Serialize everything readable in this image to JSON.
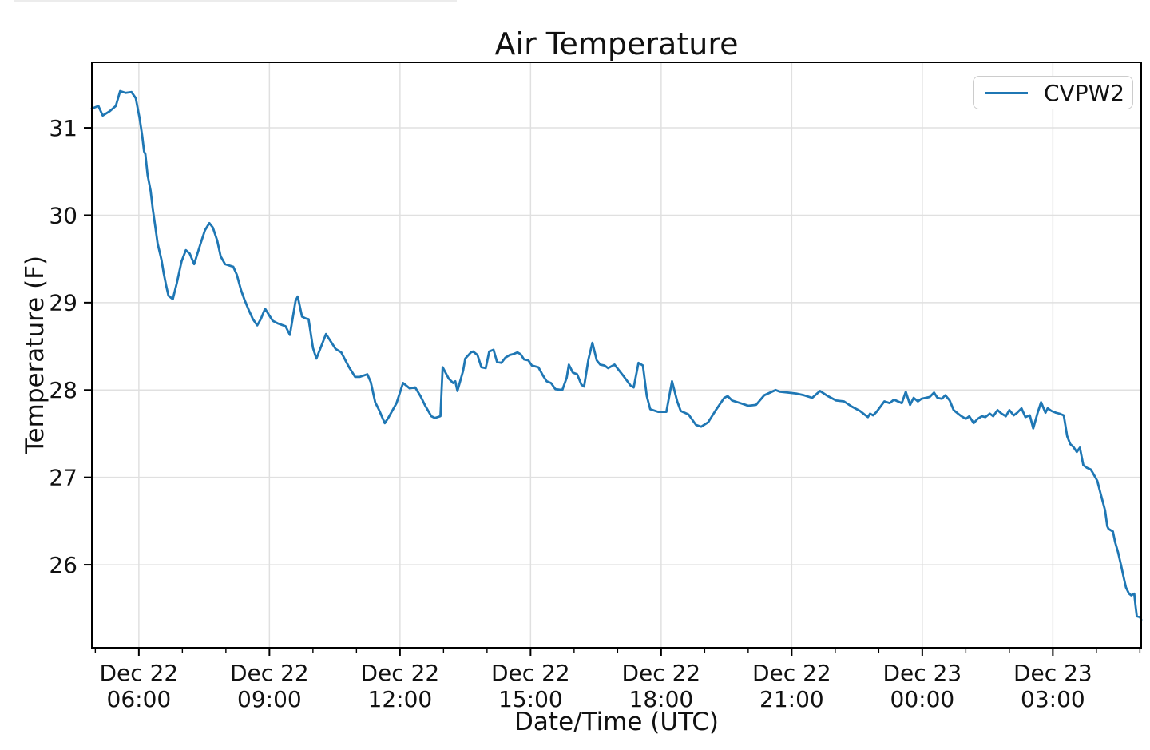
{
  "page": {
    "top_strip_color": "#ececec"
  },
  "chart": {
    "title": "Air Temperature",
    "xlabel": "Date/Time (UTC)",
    "ylabel": "Temperature (F)",
    "legend_label": "CVPW2"
  },
  "chart_data": {
    "type": "line",
    "title": "Air Temperature",
    "xlabel": "Date/Time (UTC)",
    "ylabel": "Temperature (F)",
    "legend_position": "upper right",
    "grid": true,
    "line_color": "#1f77b4",
    "grid_color": "#e0e0e0",
    "spine_color": "#000000",
    "text_color": "#111111",
    "x_unit": "hours since Dec 22 00:00 UTC",
    "xlim": [
      4.92,
      29.03
    ],
    "ylim": [
      25.05,
      31.75
    ],
    "yticks": [
      26,
      27,
      28,
      29,
      30,
      31
    ],
    "xticks": [
      {
        "t": 6,
        "line1": "Dec 22",
        "line2": "06:00"
      },
      {
        "t": 9,
        "line1": "Dec 22",
        "line2": "09:00"
      },
      {
        "t": 12,
        "line1": "Dec 22",
        "line2": "12:00"
      },
      {
        "t": 15,
        "line1": "Dec 22",
        "line2": "15:00"
      },
      {
        "t": 18,
        "line1": "Dec 22",
        "line2": "18:00"
      },
      {
        "t": 21,
        "line1": "Dec 22",
        "line2": "21:00"
      },
      {
        "t": 24,
        "line1": "Dec 23",
        "line2": "00:00"
      },
      {
        "t": 27,
        "line1": "Dec 23",
        "line2": "03:00"
      }
    ],
    "minor_xtick_step_hours": 1,
    "series": [
      {
        "name": "CVPW2",
        "points": [
          [
            4.92,
            31.22
          ],
          [
            5.07,
            31.25
          ],
          [
            5.17,
            31.14
          ],
          [
            5.33,
            31.19
          ],
          [
            5.47,
            31.25
          ],
          [
            5.57,
            31.42
          ],
          [
            5.7,
            31.4
          ],
          [
            5.83,
            31.41
          ],
          [
            5.93,
            31.34
          ],
          [
            6.02,
            31.1
          ],
          [
            6.08,
            30.9
          ],
          [
            6.12,
            30.73
          ],
          [
            6.15,
            30.7
          ],
          [
            6.2,
            30.46
          ],
          [
            6.27,
            30.28
          ],
          [
            6.32,
            30.07
          ],
          [
            6.38,
            29.86
          ],
          [
            6.43,
            29.68
          ],
          [
            6.52,
            29.49
          ],
          [
            6.57,
            29.34
          ],
          [
            6.63,
            29.19
          ],
          [
            6.68,
            29.08
          ],
          [
            6.78,
            29.04
          ],
          [
            6.87,
            29.22
          ],
          [
            6.98,
            29.47
          ],
          [
            7.08,
            29.6
          ],
          [
            7.17,
            29.56
          ],
          [
            7.27,
            29.44
          ],
          [
            7.42,
            29.68
          ],
          [
            7.52,
            29.83
          ],
          [
            7.62,
            29.91
          ],
          [
            7.7,
            29.86
          ],
          [
            7.8,
            29.71
          ],
          [
            7.88,
            29.53
          ],
          [
            7.98,
            29.44
          ],
          [
            8.17,
            29.41
          ],
          [
            8.25,
            29.32
          ],
          [
            8.35,
            29.14
          ],
          [
            8.43,
            29.03
          ],
          [
            8.53,
            28.91
          ],
          [
            8.62,
            28.81
          ],
          [
            8.72,
            28.74
          ],
          [
            8.8,
            28.81
          ],
          [
            8.9,
            28.93
          ],
          [
            9.0,
            28.85
          ],
          [
            9.08,
            28.79
          ],
          [
            9.2,
            28.76
          ],
          [
            9.37,
            28.73
          ],
          [
            9.47,
            28.63
          ],
          [
            9.6,
            29.02
          ],
          [
            9.65,
            29.07
          ],
          [
            9.75,
            28.84
          ],
          [
            9.83,
            28.82
          ],
          [
            9.9,
            28.81
          ],
          [
            10.0,
            28.48
          ],
          [
            10.08,
            28.36
          ],
          [
            10.3,
            28.64
          ],
          [
            10.52,
            28.47
          ],
          [
            10.65,
            28.43
          ],
          [
            10.83,
            28.26
          ],
          [
            10.97,
            28.15
          ],
          [
            11.07,
            28.15
          ],
          [
            11.25,
            28.18
          ],
          [
            11.33,
            28.09
          ],
          [
            11.43,
            27.86
          ],
          [
            11.52,
            27.77
          ],
          [
            11.65,
            27.62
          ],
          [
            11.73,
            27.68
          ],
          [
            11.92,
            27.85
          ],
          [
            12.07,
            28.08
          ],
          [
            12.22,
            28.02
          ],
          [
            12.35,
            28.03
          ],
          [
            12.47,
            27.93
          ],
          [
            12.58,
            27.82
          ],
          [
            12.72,
            27.7
          ],
          [
            12.8,
            27.68
          ],
          [
            12.93,
            27.7
          ],
          [
            12.98,
            28.26
          ],
          [
            13.12,
            28.13
          ],
          [
            13.22,
            28.08
          ],
          [
            13.27,
            28.1
          ],
          [
            13.32,
            27.99
          ],
          [
            13.45,
            28.22
          ],
          [
            13.5,
            28.36
          ],
          [
            13.63,
            28.43
          ],
          [
            13.68,
            28.44
          ],
          [
            13.78,
            28.4
          ],
          [
            13.87,
            28.26
          ],
          [
            13.97,
            28.25
          ],
          [
            14.05,
            28.44
          ],
          [
            14.15,
            28.46
          ],
          [
            14.23,
            28.32
          ],
          [
            14.33,
            28.31
          ],
          [
            14.42,
            28.37
          ],
          [
            14.52,
            28.4
          ],
          [
            14.6,
            28.41
          ],
          [
            14.7,
            28.43
          ],
          [
            14.77,
            28.41
          ],
          [
            14.85,
            28.35
          ],
          [
            14.95,
            28.34
          ],
          [
            15.03,
            28.28
          ],
          [
            15.18,
            28.26
          ],
          [
            15.28,
            28.17
          ],
          [
            15.37,
            28.1
          ],
          [
            15.47,
            28.08
          ],
          [
            15.57,
            28.01
          ],
          [
            15.73,
            28.0
          ],
          [
            15.83,
            28.14
          ],
          [
            15.88,
            28.29
          ],
          [
            15.97,
            28.2
          ],
          [
            16.07,
            28.18
          ],
          [
            16.17,
            28.06
          ],
          [
            16.23,
            28.04
          ],
          [
            16.33,
            28.35
          ],
          [
            16.42,
            28.54
          ],
          [
            16.52,
            28.34
          ],
          [
            16.6,
            28.29
          ],
          [
            16.7,
            28.28
          ],
          [
            16.78,
            28.25
          ],
          [
            16.93,
            28.29
          ],
          [
            17.12,
            28.17
          ],
          [
            17.3,
            28.05
          ],
          [
            17.37,
            28.03
          ],
          [
            17.48,
            28.31
          ],
          [
            17.58,
            28.28
          ],
          [
            17.67,
            27.93
          ],
          [
            17.75,
            27.78
          ],
          [
            17.93,
            27.75
          ],
          [
            18.12,
            27.75
          ],
          [
            18.25,
            28.1
          ],
          [
            18.37,
            27.87
          ],
          [
            18.45,
            27.76
          ],
          [
            18.63,
            27.72
          ],
          [
            18.8,
            27.6
          ],
          [
            18.92,
            27.58
          ],
          [
            19.08,
            27.63
          ],
          [
            19.27,
            27.78
          ],
          [
            19.45,
            27.91
          ],
          [
            19.53,
            27.93
          ],
          [
            19.63,
            27.88
          ],
          [
            19.82,
            27.85
          ],
          [
            20.0,
            27.82
          ],
          [
            20.18,
            27.83
          ],
          [
            20.37,
            27.94
          ],
          [
            20.63,
            28.0
          ],
          [
            20.73,
            27.98
          ],
          [
            20.92,
            27.97
          ],
          [
            21.1,
            27.96
          ],
          [
            21.28,
            27.94
          ],
          [
            21.47,
            27.91
          ],
          [
            21.65,
            27.99
          ],
          [
            21.83,
            27.93
          ],
          [
            22.02,
            27.88
          ],
          [
            22.2,
            27.87
          ],
          [
            22.38,
            27.81
          ],
          [
            22.57,
            27.76
          ],
          [
            22.75,
            27.69
          ],
          [
            22.8,
            27.73
          ],
          [
            22.87,
            27.71
          ],
          [
            22.95,
            27.75
          ],
          [
            23.13,
            27.87
          ],
          [
            23.25,
            27.85
          ],
          [
            23.35,
            27.89
          ],
          [
            23.53,
            27.85
          ],
          [
            23.62,
            27.98
          ],
          [
            23.72,
            27.83
          ],
          [
            23.8,
            27.91
          ],
          [
            23.9,
            27.87
          ],
          [
            23.98,
            27.9
          ],
          [
            24.17,
            27.92
          ],
          [
            24.27,
            27.97
          ],
          [
            24.35,
            27.91
          ],
          [
            24.45,
            27.9
          ],
          [
            24.53,
            27.94
          ],
          [
            24.63,
            27.88
          ],
          [
            24.72,
            27.77
          ],
          [
            24.82,
            27.73
          ],
          [
            24.9,
            27.7
          ],
          [
            25.0,
            27.67
          ],
          [
            25.08,
            27.7
          ],
          [
            25.18,
            27.62
          ],
          [
            25.27,
            27.67
          ],
          [
            25.37,
            27.7
          ],
          [
            25.45,
            27.69
          ],
          [
            25.55,
            27.73
          ],
          [
            25.63,
            27.7
          ],
          [
            25.73,
            27.77
          ],
          [
            25.82,
            27.73
          ],
          [
            25.92,
            27.7
          ],
          [
            26.0,
            27.77
          ],
          [
            26.1,
            27.71
          ],
          [
            26.18,
            27.74
          ],
          [
            26.28,
            27.79
          ],
          [
            26.37,
            27.69
          ],
          [
            26.47,
            27.71
          ],
          [
            26.55,
            27.56
          ],
          [
            26.65,
            27.74
          ],
          [
            26.73,
            27.86
          ],
          [
            26.83,
            27.74
          ],
          [
            26.88,
            27.79
          ],
          [
            26.97,
            27.76
          ],
          [
            27.07,
            27.74
          ],
          [
            27.15,
            27.73
          ],
          [
            27.25,
            27.71
          ],
          [
            27.33,
            27.47
          ],
          [
            27.4,
            27.38
          ],
          [
            27.47,
            27.35
          ],
          [
            27.55,
            27.29
          ],
          [
            27.62,
            27.34
          ],
          [
            27.7,
            27.14
          ],
          [
            27.78,
            27.11
          ],
          [
            27.87,
            27.09
          ],
          [
            27.92,
            27.05
          ],
          [
            28.02,
            26.96
          ],
          [
            28.1,
            26.81
          ],
          [
            28.2,
            26.62
          ],
          [
            28.25,
            26.44
          ],
          [
            28.28,
            26.41
          ],
          [
            28.38,
            26.38
          ],
          [
            28.43,
            26.26
          ],
          [
            28.5,
            26.14
          ],
          [
            28.57,
            25.99
          ],
          [
            28.62,
            25.87
          ],
          [
            28.68,
            25.74
          ],
          [
            28.75,
            25.67
          ],
          [
            28.8,
            25.65
          ],
          [
            28.87,
            25.67
          ],
          [
            28.9,
            25.53
          ],
          [
            28.93,
            25.41
          ],
          [
            29.0,
            25.4
          ],
          [
            29.03,
            25.37
          ]
        ]
      }
    ]
  }
}
